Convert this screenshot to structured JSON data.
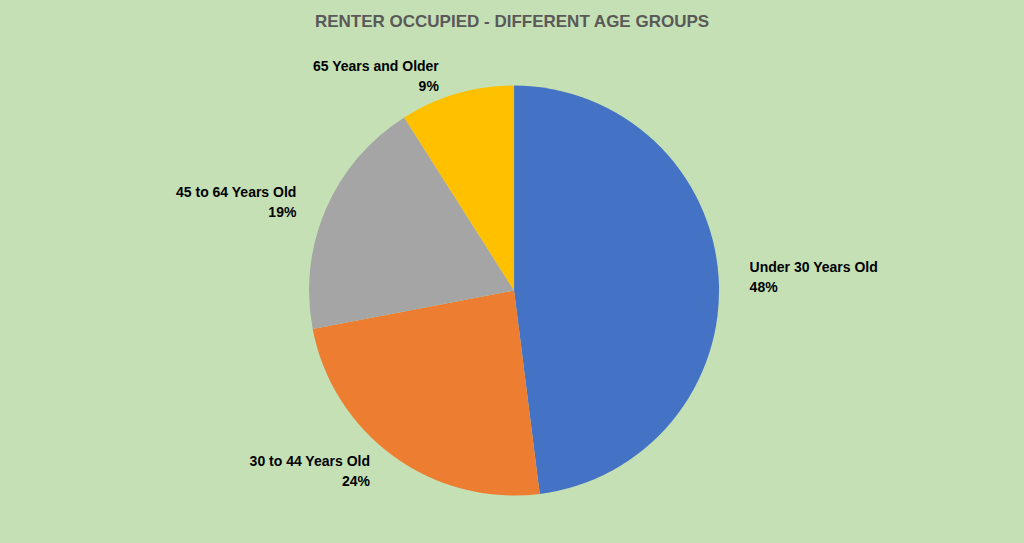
{
  "chart_data": {
    "type": "pie",
    "title": "RENTER OCCUPIED - DIFFERENT AGE GROUPS",
    "categories": [
      "Under 30 Years Old",
      "30 to 44 Years Old",
      "45 to 64 Years Old",
      "65 Years and Older"
    ],
    "values": [
      48,
      24,
      19,
      9
    ],
    "value_labels": [
      "48%",
      "24%",
      "19%",
      "9%"
    ],
    "colors": [
      "#4472c4",
      "#ed7d31",
      "#a5a5a5",
      "#ffc000"
    ],
    "data_labels": true,
    "legend": null
  }
}
